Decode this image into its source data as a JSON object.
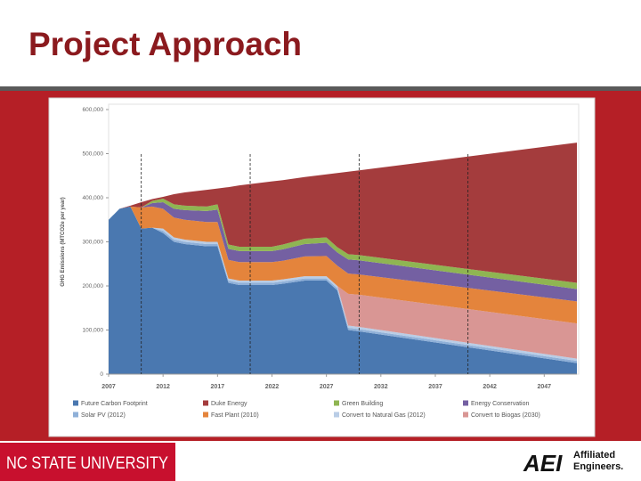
{
  "title": "Project Approach",
  "footer_left": "NC STATE UNIVERSITY",
  "logo": {
    "mark": "AEI",
    "lines": [
      "Affiliated",
      "Engineers."
    ]
  },
  "chart_data": {
    "type": "stacked_area",
    "y_label": "GHG Emissions (MTCO2e per year)",
    "x": [
      2007,
      2008,
      2009,
      2010,
      2011,
      2012,
      2013,
      2014,
      2016,
      2017,
      2018,
      2019,
      2022,
      2023,
      2025,
      2027,
      2028,
      2029,
      2030,
      2050
    ],
    "xlim": [
      2007,
      2050
    ],
    "xticks": [
      2007,
      2012,
      2017,
      2022,
      2027,
      2032,
      2037,
      2042,
      2047
    ],
    "ylim": [
      0,
      600000
    ],
    "yticks": [
      0,
      {
        "value": 100000,
        "label": "100,000"
      },
      {
        "value": 200000,
        "label": "200,000"
      },
      {
        "value": 300000,
        "label": "300,000"
      },
      {
        "value": 400000,
        "label": "400,000"
      },
      {
        "value": 500000,
        "label": "500,000"
      },
      {
        "value": 600000,
        "label": "600,000"
      }
    ],
    "reference_lines": [
      2010,
      2020,
      2030,
      2040
    ],
    "series": [
      {
        "name": "Future Carbon Footprint",
        "color": "#4a78b0",
        "values": [
          350000,
          375000,
          380000,
          330000,
          332000,
          320000,
          300000,
          295000,
          290000,
          290000,
          207000,
          202000,
          202000,
          205000,
          212000,
          212000,
          190000,
          100000,
          97000,
          25000
        ]
      },
      {
        "name": "Solar PV (2012)",
        "color": "#8fb0d8",
        "values": [
          0,
          0,
          0,
          0,
          0,
          5000,
          5000,
          5000,
          5000,
          5000,
          5000,
          5000,
          5000,
          5000,
          5000,
          5000,
          5000,
          5000,
          5000,
          5000
        ]
      },
      {
        "name": "Convert to Natural Gas (2012)",
        "color": "#b9cde6",
        "values": [
          0,
          0,
          0,
          0,
          0,
          5000,
          5000,
          5000,
          5000,
          5000,
          5000,
          5000,
          5000,
          5000,
          5000,
          5000,
          5000,
          5000,
          5000,
          5000
        ]
      },
      {
        "name": "Convert to Biogas (2030)",
        "color": "#d99694",
        "values": [
          0,
          0,
          0,
          0,
          0,
          0,
          0,
          0,
          0,
          0,
          0,
          0,
          0,
          0,
          0,
          0,
          0,
          72000,
          73000,
          80000
        ]
      },
      {
        "name": "Fast Plant (2010)",
        "color": "#e4843c",
        "values": [
          0,
          0,
          0,
          48000,
          48000,
          45000,
          45000,
          45000,
          45000,
          45000,
          42000,
          42000,
          42000,
          42000,
          45000,
          46000,
          46000,
          46000,
          46000,
          50000
        ]
      },
      {
        "name": "Energy Conservation",
        "color": "#7460a2",
        "values": [
          0,
          0,
          0,
          0,
          8000,
          15000,
          20000,
          22000,
          25000,
          28000,
          25000,
          25000,
          25000,
          26000,
          28000,
          30000,
          30000,
          32000,
          32000,
          28000
        ]
      },
      {
        "name": "Green Building",
        "color": "#8fb552",
        "values": [
          0,
          0,
          0,
          0,
          5000,
          8000,
          10000,
          10000,
          10000,
          12000,
          10000,
          10000,
          10000,
          11000,
          12000,
          12000,
          12000,
          12000,
          12000,
          14000
        ]
      },
      {
        "name": "Duke Energy",
        "color": "#a43c3d",
        "values": [
          0,
          0,
          2000,
          12000,
          4000,
          4000,
          23000,
          30000,
          38000,
          36000,
          130000,
          139000,
          148000,
          146000,
          140000,
          143000,
          168000,
          187000,
          192000,
          318000
        ]
      }
    ]
  }
}
